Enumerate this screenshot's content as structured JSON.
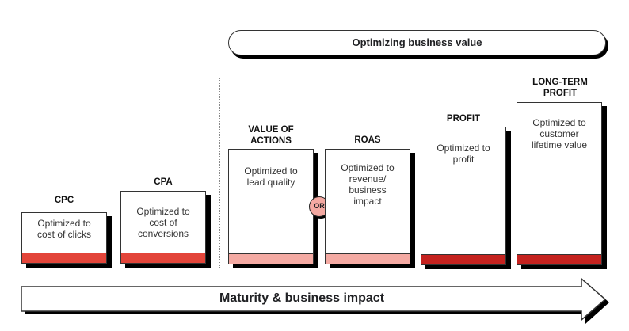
{
  "header": {
    "title": "Optimizing business value"
  },
  "stages": [
    {
      "label": "CPC",
      "description": "Optimized to cost of clicks",
      "bar_color": "#e3453a"
    },
    {
      "label": "CPA",
      "description": "Optimized to cost of conversions",
      "bar_color": "#e3453a"
    },
    {
      "label": "VALUE OF ACTIONS",
      "description": "Optimized to lead quality",
      "bar_color": "#f4aaa3"
    },
    {
      "label": "ROAS",
      "description": "Optimized to revenue/ business impact",
      "bar_color": "#f4aaa3"
    },
    {
      "label": "PROFIT",
      "description": "Optimized to profit",
      "bar_color": "#c5221f"
    },
    {
      "label": "LONG-TERM PROFIT",
      "description": "Optimized to customer lifetime value",
      "bar_color": "#c5221f"
    }
  ],
  "connector": {
    "label": "OR"
  },
  "axis": {
    "label": "Maturity & business impact"
  }
}
